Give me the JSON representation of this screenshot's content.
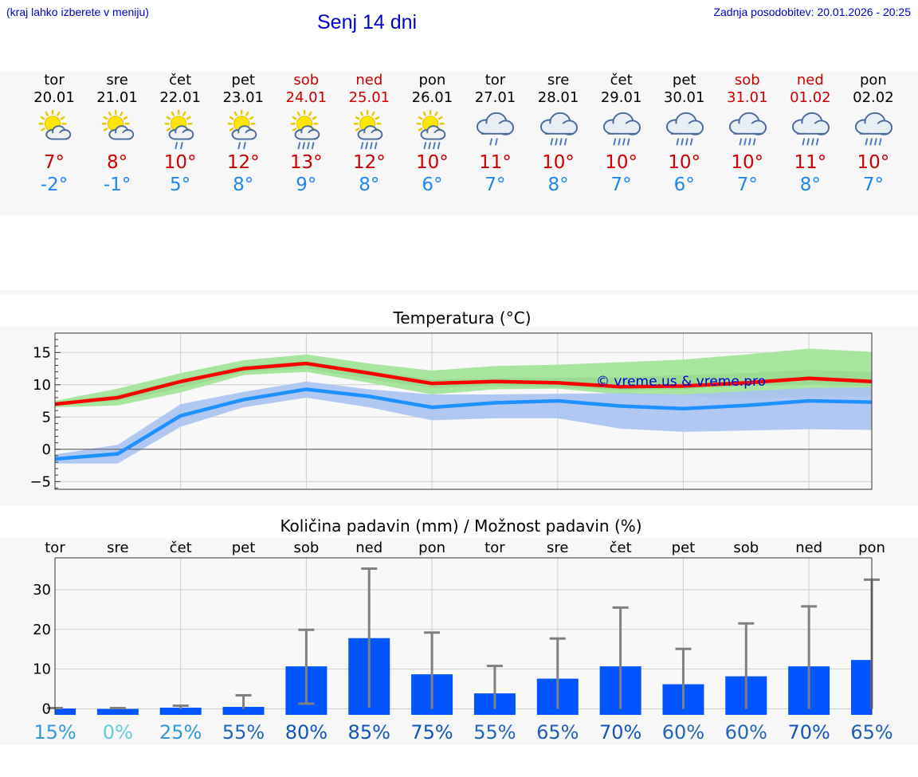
{
  "header": {
    "hint": "(kraj lahko izberete v meniju)",
    "title": "Senj 14 dni",
    "updated": "Zadnja posodobitev: 20.01.2026 - 20:25"
  },
  "days": [
    {
      "name": "tor",
      "date": "20.01",
      "weekend": false,
      "icon": "sun-cloud-icon",
      "tmax": "7°",
      "tmin": "-2°"
    },
    {
      "name": "sre",
      "date": "21.01",
      "weekend": false,
      "icon": "sun-cloud-icon",
      "tmax": "8°",
      "tmin": "-1°"
    },
    {
      "name": "čet",
      "date": "22.01",
      "weekend": false,
      "icon": "sun-cloud-rain-icon",
      "tmax": "10°",
      "tmin": "5°"
    },
    {
      "name": "pet",
      "date": "23.01",
      "weekend": false,
      "icon": "sun-cloud-rain-icon",
      "tmax": "12°",
      "tmin": "8°"
    },
    {
      "name": "sob",
      "date": "24.01",
      "weekend": true,
      "icon": "sun-cloud-heavy-rain-icon",
      "tmax": "13°",
      "tmin": "9°"
    },
    {
      "name": "ned",
      "date": "25.01",
      "weekend": true,
      "icon": "sun-cloud-heavy-rain-icon",
      "tmax": "12°",
      "tmin": "8°"
    },
    {
      "name": "pon",
      "date": "26.01",
      "weekend": false,
      "icon": "sun-cloud-heavy-rain-icon",
      "tmax": "10°",
      "tmin": "6°"
    },
    {
      "name": "tor",
      "date": "27.01",
      "weekend": false,
      "icon": "cloud-rain-icon",
      "tmax": "11°",
      "tmin": "7°"
    },
    {
      "name": "sre",
      "date": "28.01",
      "weekend": false,
      "icon": "cloud-heavy-rain-icon",
      "tmax": "10°",
      "tmin": "8°"
    },
    {
      "name": "čet",
      "date": "29.01",
      "weekend": false,
      "icon": "cloud-heavy-rain-icon",
      "tmax": "10°",
      "tmin": "7°"
    },
    {
      "name": "pet",
      "date": "30.01",
      "weekend": false,
      "icon": "cloud-heavy-rain-icon",
      "tmax": "10°",
      "tmin": "6°"
    },
    {
      "name": "sob",
      "date": "31.01",
      "weekend": true,
      "icon": "cloud-heavy-rain-icon",
      "tmax": "10°",
      "tmin": "7°"
    },
    {
      "name": "ned",
      "date": "01.02",
      "weekend": true,
      "icon": "cloud-heavy-rain-icon",
      "tmax": "11°",
      "tmin": "8°"
    },
    {
      "name": "pon",
      "date": "02.02",
      "weekend": false,
      "icon": "cloud-heavy-rain-icon",
      "tmax": "10°",
      "tmin": "7°"
    }
  ],
  "colors": {
    "weekend": "#cc0000",
    "tmax_line": "#ff0000",
    "tmin_line": "#1e90ff",
    "max_band": "#a8e6a0",
    "min_band": "#a9c2f2",
    "bar": "#0055ff",
    "whisker": "#808080",
    "watermark": "#0000cc"
  },
  "chart_data": [
    {
      "type": "line",
      "title": "Temperatura (°C)",
      "ylim": [
        -6.2,
        18
      ],
      "yticks": [
        -5,
        0,
        5,
        10,
        15
      ],
      "ytick_labels": [
        "−5",
        "0",
        "5",
        "10",
        "15"
      ],
      "x": [
        0,
        1,
        2,
        3,
        4,
        5,
        6,
        7,
        8,
        9,
        10,
        11,
        12,
        13
      ],
      "watermark": "© vreme.us & vreme.pro",
      "series": [
        {
          "name": "max",
          "values": [
            7.0,
            8.0,
            10.5,
            12.5,
            13.3,
            11.8,
            10.2,
            10.5,
            10.3,
            9.7,
            9.8,
            10.3,
            11.0,
            10.5
          ]
        },
        {
          "name": "min",
          "values": [
            -1.5,
            -0.7,
            5.2,
            7.7,
            9.3,
            8.2,
            6.5,
            7.2,
            7.5,
            6.7,
            6.3,
            6.8,
            7.5,
            7.3
          ]
        }
      ],
      "max_band": {
        "low": [
          6.5,
          6.8,
          8.8,
          11.5,
          12.0,
          10.3,
          8.5,
          9.3,
          9.4,
          8.5,
          8.3,
          7.8,
          8.2,
          8.2
        ],
        "high": [
          7.5,
          9.4,
          11.8,
          13.8,
          14.7,
          13.3,
          12.2,
          12.9,
          13.1,
          13.5,
          13.9,
          14.7,
          15.6,
          15.1
        ]
      },
      "max_band_mid": {
        "low": [
          7.0,
          7.5,
          9.5,
          12.0,
          12.5,
          10.9,
          9.5,
          9.8,
          9.6,
          9.2,
          9.3,
          9.8,
          10.0,
          9.8
        ],
        "high": [
          7.2,
          8.5,
          10.8,
          13.0,
          13.6,
          12.2,
          10.8,
          11.0,
          11.1,
          11.2,
          11.5,
          11.8,
          12.3,
          12.0
        ]
      },
      "min_band": {
        "low": [
          -2.2,
          -2.2,
          3.5,
          6.5,
          8.0,
          6.5,
          4.5,
          4.8,
          4.8,
          3.2,
          2.7,
          2.9,
          3.1,
          3.0
        ],
        "high": [
          -0.8,
          0.7,
          7.0,
          8.9,
          10.5,
          9.3,
          8.5,
          8.5,
          8.6,
          8.7,
          8.5,
          9.0,
          9.5,
          9.6
        ]
      }
    },
    {
      "type": "bar",
      "title": "Količina padavin (mm) / Možnost padavin (%)",
      "categories": [
        "tor",
        "sre",
        "čet",
        "pet",
        "sob",
        "ned",
        "pon",
        "tor",
        "sre",
        "čet",
        "pet",
        "sob",
        "ned",
        "pon"
      ],
      "values": [
        0.1,
        0.0,
        0.3,
        0.5,
        10.7,
        17.8,
        8.7,
        3.9,
        7.6,
        10.7,
        6.2,
        8.2,
        10.7,
        12.3
      ],
      "error_high": [
        0.2,
        0.2,
        0.8,
        3.4,
        19.9,
        35.3,
        19.2,
        10.8,
        17.7,
        25.5,
        15.1,
        21.5,
        25.8,
        32.5
      ],
      "error_low": [
        0.0,
        0.0,
        0.0,
        0.0,
        1.3,
        0.3,
        0.0,
        0.0,
        0.0,
        0.0,
        0.0,
        0.0,
        0.0,
        0.0
      ],
      "ylim": [
        -1.5,
        38
      ],
      "yticks": [
        0,
        10,
        20,
        30
      ],
      "ytick_labels": [
        "0",
        "10",
        "20",
        "30"
      ],
      "probabilities": [
        "15%",
        "0%",
        "25%",
        "55%",
        "80%",
        "85%",
        "75%",
        "55%",
        "65%",
        "70%",
        "60%",
        "60%",
        "70%",
        "65%"
      ],
      "probability_colors": [
        "#3399dd",
        "#66ccdd",
        "#3399dd",
        "#2266bb",
        "#1155bb",
        "#1155bb",
        "#1155bb",
        "#2266bb",
        "#1f5fb8",
        "#1155bb",
        "#2266bb",
        "#2266bb",
        "#1155bb",
        "#1f5fb8"
      ]
    }
  ]
}
